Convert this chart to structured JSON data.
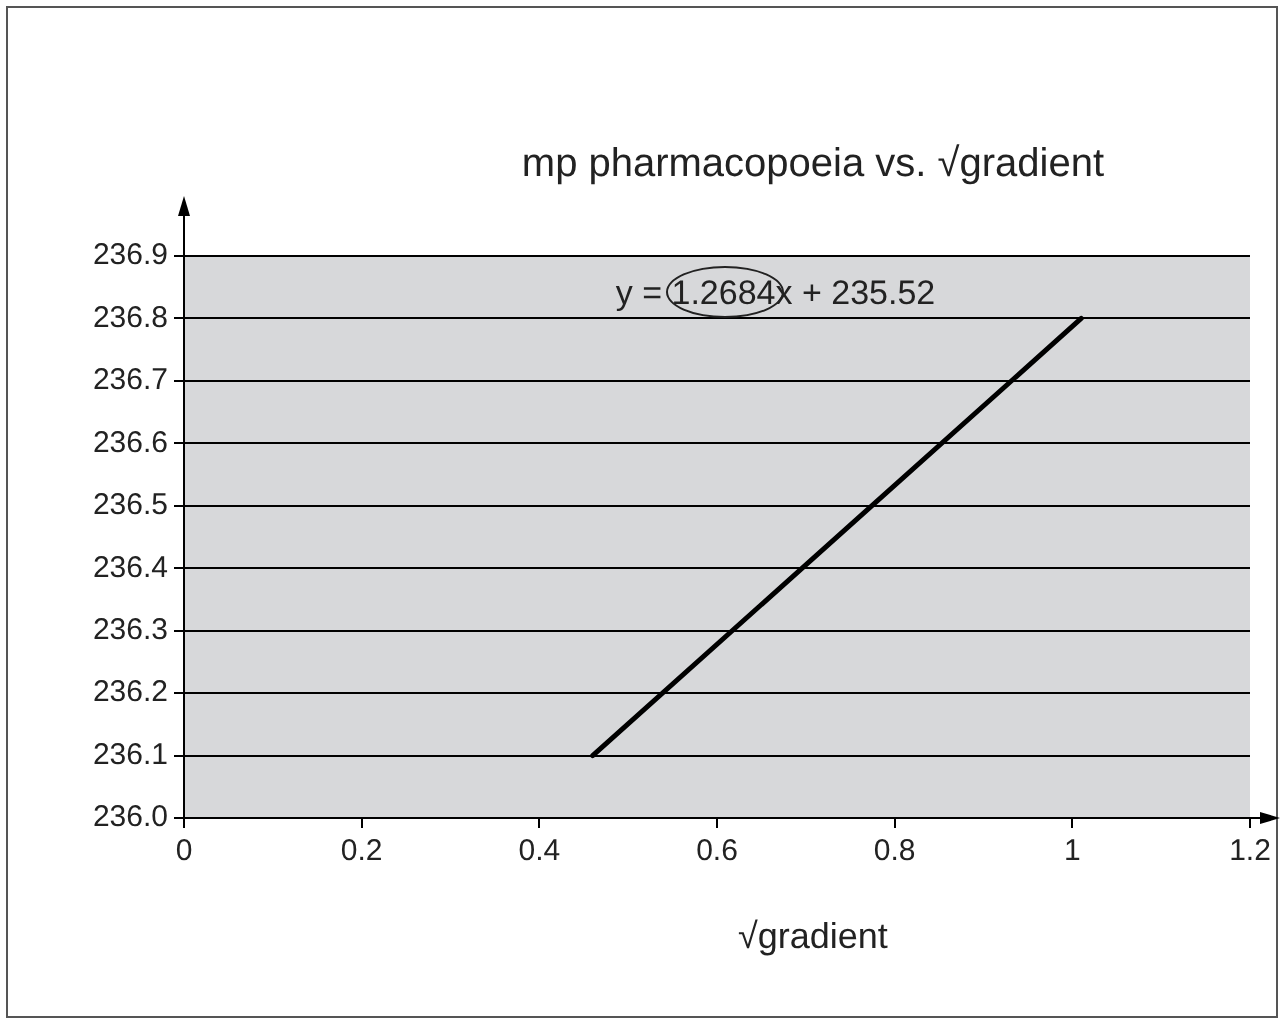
{
  "chart_data": {
    "type": "line",
    "title": "mp pharmacopoeia vs. √gradient",
    "xlabel": "√gradient",
    "annotations": [
      "y = 1.2684x + 235.52"
    ],
    "series": [
      {
        "color": "#000000",
        "x": [
          0.46,
          1.01
        ],
        "values": [
          236.1,
          236.8
        ]
      }
    ],
    "xlim": [
      0,
      1.2
    ],
    "xticks": [
      0,
      0.2,
      0.4,
      0.6,
      0.8,
      1,
      1.2
    ],
    "ylim": [
      236.0,
      236.9
    ],
    "yticks": [
      {
        "value": 236.0,
        "label": "236.0"
      },
      236.1,
      236.2,
      236.3,
      236.4,
      236.5,
      236.6,
      236.7,
      236.8,
      236.9
    ],
    "grid": "y",
    "legend": false,
    "marker": "none",
    "line_style": "solid"
  }
}
